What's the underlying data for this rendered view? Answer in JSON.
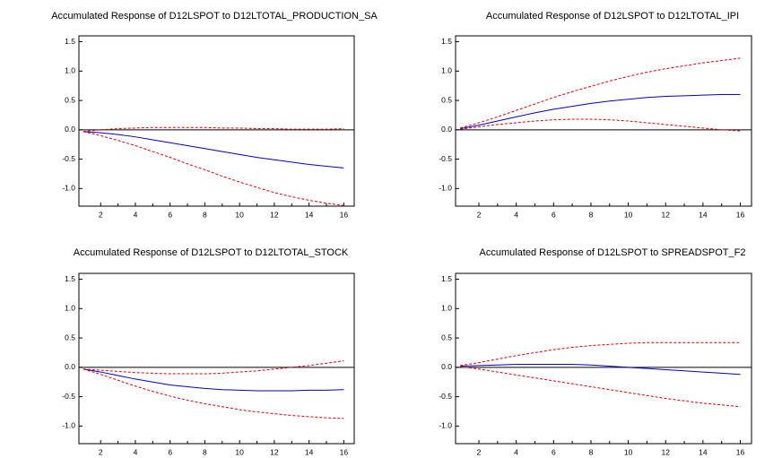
{
  "chart_data": [
    {
      "type": "line",
      "title": "Accumulated Response of D12LSPOT to D12LTOTAL_PRODUCTION_SA",
      "x": [
        1,
        2,
        3,
        4,
        5,
        6,
        7,
        8,
        9,
        10,
        11,
        12,
        13,
        14,
        15,
        16
      ],
      "xlim": [
        0.75,
        16.6
      ],
      "xticks": [
        2,
        4,
        6,
        8,
        10,
        12,
        14,
        16
      ],
      "ylim": [
        -1.3,
        1.6
      ],
      "yticks": [
        {
          "value": 1.5,
          "label": "1.5"
        },
        {
          "value": 1,
          "label": "1.0"
        },
        {
          "value": 0.5,
          "label": "0.5"
        },
        {
          "value": 0,
          "label": "0.0"
        },
        {
          "value": -0.5,
          "label": "-0.5"
        },
        {
          "value": -1,
          "label": "-1.0"
        }
      ],
      "series": [
        {
          "color": "#0000cc",
          "style": "solid",
          "values": [
            -0.03,
            -0.05,
            -0.08,
            -0.12,
            -0.17,
            -0.22,
            -0.27,
            -0.32,
            -0.37,
            -0.42,
            -0.47,
            -0.51,
            -0.55,
            -0.59,
            -0.62,
            -0.65
          ]
        },
        {
          "color": "#e00000",
          "style": "dashed",
          "values": [
            -0.03,
            0.0,
            0.02,
            0.03,
            0.04,
            0.04,
            0.04,
            0.04,
            0.03,
            0.03,
            0.02,
            0.02,
            0.01,
            0.01,
            0.01,
            0.02
          ]
        },
        {
          "color": "#e00000",
          "style": "dashed",
          "values": [
            -0.03,
            -0.1,
            -0.18,
            -0.27,
            -0.37,
            -0.47,
            -0.58,
            -0.68,
            -0.79,
            -0.89,
            -0.98,
            -1.07,
            -1.14,
            -1.2,
            -1.25,
            -1.29
          ]
        }
      ]
    },
    {
      "type": "line",
      "title": "Accumulated Response of D12LSPOT to D12LTOTAL_IPI",
      "x": [
        1,
        2,
        3,
        4,
        5,
        6,
        7,
        8,
        9,
        10,
        11,
        12,
        13,
        14,
        15,
        16
      ],
      "xlim": [
        0.75,
        16.6
      ],
      "xticks": [
        2,
        4,
        6,
        8,
        10,
        12,
        14,
        16
      ],
      "ylim": [
        -1.3,
        1.6
      ],
      "yticks": [
        {
          "value": 1.5,
          "label": "1.5"
        },
        {
          "value": 1,
          "label": "1.0"
        },
        {
          "value": 0.5,
          "label": "0.5"
        },
        {
          "value": 0,
          "label": "0.0"
        },
        {
          "value": -0.5,
          "label": "-0.5"
        },
        {
          "value": -1,
          "label": "-1.0"
        }
      ],
      "series": [
        {
          "color": "#0000cc",
          "style": "solid",
          "values": [
            0.02,
            0.08,
            0.15,
            0.22,
            0.29,
            0.35,
            0.4,
            0.45,
            0.49,
            0.52,
            0.55,
            0.57,
            0.58,
            0.59,
            0.6,
            0.6
          ]
        },
        {
          "color": "#e00000",
          "style": "dashed",
          "values": [
            0.03,
            0.12,
            0.22,
            0.33,
            0.44,
            0.55,
            0.65,
            0.74,
            0.83,
            0.91,
            0.98,
            1.04,
            1.09,
            1.14,
            1.18,
            1.22
          ]
        },
        {
          "color": "#e00000",
          "style": "dashed",
          "values": [
            0.01,
            0.05,
            0.09,
            0.12,
            0.15,
            0.17,
            0.18,
            0.18,
            0.17,
            0.15,
            0.12,
            0.09,
            0.06,
            0.03,
            0.0,
            -0.02
          ]
        }
      ]
    },
    {
      "type": "line",
      "title": "Accumulated Response of D12LSPOT to D12LTOTAL_STOCK",
      "x": [
        1,
        2,
        3,
        4,
        5,
        6,
        7,
        8,
        9,
        10,
        11,
        12,
        13,
        14,
        15,
        16
      ],
      "xlim": [
        0.75,
        16.6
      ],
      "xticks": [
        2,
        4,
        6,
        8,
        10,
        12,
        14,
        16
      ],
      "ylim": [
        -1.3,
        1.6
      ],
      "yticks": [
        {
          "value": 1.5,
          "label": "1.5"
        },
        {
          "value": 1,
          "label": "1.0"
        },
        {
          "value": 0.5,
          "label": "0.5"
        },
        {
          "value": 0,
          "label": "0.0"
        },
        {
          "value": -0.5,
          "label": "-0.5"
        },
        {
          "value": -1,
          "label": "-1.0"
        }
      ],
      "series": [
        {
          "color": "#0000cc",
          "style": "solid",
          "values": [
            -0.03,
            -0.08,
            -0.14,
            -0.2,
            -0.25,
            -0.3,
            -0.33,
            -0.36,
            -0.38,
            -0.39,
            -0.4,
            -0.4,
            -0.4,
            -0.39,
            -0.39,
            -0.38
          ]
        },
        {
          "color": "#e00000",
          "style": "dashed",
          "values": [
            -0.03,
            -0.05,
            -0.07,
            -0.09,
            -0.1,
            -0.11,
            -0.11,
            -0.11,
            -0.1,
            -0.08,
            -0.06,
            -0.03,
            0.0,
            0.03,
            0.07,
            0.11
          ]
        },
        {
          "color": "#e00000",
          "style": "dashed",
          "values": [
            -0.03,
            -0.12,
            -0.22,
            -0.32,
            -0.41,
            -0.49,
            -0.56,
            -0.62,
            -0.67,
            -0.72,
            -0.76,
            -0.79,
            -0.82,
            -0.84,
            -0.86,
            -0.87
          ]
        }
      ]
    },
    {
      "type": "line",
      "title": "Accumulated Response of D12LSPOT to SPREADSPOT_F2",
      "x": [
        1,
        2,
        3,
        4,
        5,
        6,
        7,
        8,
        9,
        10,
        11,
        12,
        13,
        14,
        15,
        16
      ],
      "xlim": [
        0.75,
        16.6
      ],
      "xticks": [
        2,
        4,
        6,
        8,
        10,
        12,
        14,
        16
      ],
      "ylim": [
        -1.3,
        1.6
      ],
      "yticks": [
        {
          "value": 1.5,
          "label": "1.5"
        },
        {
          "value": 1,
          "label": "1.0"
        },
        {
          "value": 0.5,
          "label": "0.5"
        },
        {
          "value": 0,
          "label": "0.0"
        },
        {
          "value": -0.5,
          "label": "-0.5"
        },
        {
          "value": -1,
          "label": "-1.0"
        }
      ],
      "series": [
        {
          "color": "#0000cc",
          "style": "solid",
          "values": [
            0.02,
            0.03,
            0.04,
            0.05,
            0.05,
            0.05,
            0.05,
            0.04,
            0.02,
            0.0,
            -0.02,
            -0.04,
            -0.06,
            -0.08,
            -0.1,
            -0.12
          ]
        },
        {
          "color": "#e00000",
          "style": "dashed",
          "values": [
            0.03,
            0.08,
            0.14,
            0.2,
            0.25,
            0.3,
            0.34,
            0.37,
            0.39,
            0.41,
            0.42,
            0.42,
            0.42,
            0.42,
            0.42,
            0.42
          ]
        },
        {
          "color": "#e00000",
          "style": "dashed",
          "values": [
            0.01,
            -0.03,
            -0.08,
            -0.13,
            -0.18,
            -0.23,
            -0.28,
            -0.33,
            -0.38,
            -0.43,
            -0.48,
            -0.53,
            -0.57,
            -0.61,
            -0.64,
            -0.67
          ]
        }
      ]
    }
  ]
}
